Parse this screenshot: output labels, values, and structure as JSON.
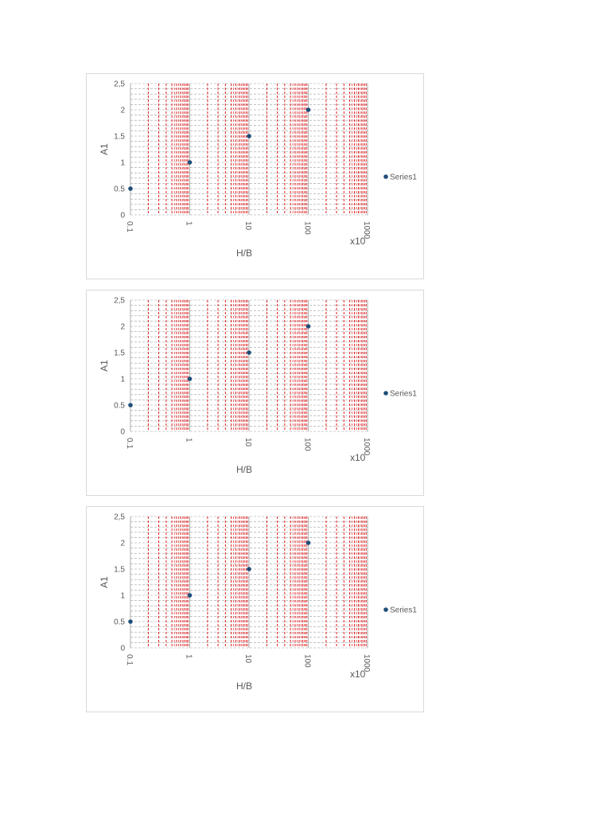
{
  "colors": {
    "minor_x_grid": "#e02020",
    "major_x_grid": "#999999",
    "y_grid": "#9e9e9e",
    "marker": "#1f4e79",
    "text": "#595959",
    "frame": "#d9d9d9"
  },
  "chart_data": [
    {
      "type": "scatter",
      "x_scale": "log",
      "xlim": [
        0.1,
        1000
      ],
      "ylim": [
        0,
        2.5
      ],
      "x_ticks": [
        "0.1",
        "1",
        "10",
        "100",
        "1000"
      ],
      "x_tick_values": [
        0.1,
        1,
        10,
        100,
        1000
      ],
      "y_ticks": [
        "0",
        "0.5",
        "1",
        "1.5",
        "2",
        "2,5"
      ],
      "y_tick_values": [
        0,
        0.5,
        1,
        1.5,
        2,
        2.5
      ],
      "xlabel": "H/B",
      "ylabel": "A1",
      "x_multiplier_label": "x10",
      "grid": true,
      "legend_position": "right",
      "series": [
        {
          "name": "Series1",
          "x": [
            0.1,
            1,
            10,
            100
          ],
          "y": [
            0.5,
            1,
            1.5,
            2
          ]
        }
      ]
    },
    {
      "type": "scatter",
      "x_scale": "log",
      "xlim": [
        0.1,
        1000
      ],
      "ylim": [
        0,
        2.5
      ],
      "x_ticks": [
        "0.1",
        "1",
        "10",
        "100",
        "1000"
      ],
      "x_tick_values": [
        0.1,
        1,
        10,
        100,
        1000
      ],
      "y_ticks": [
        "0",
        "0.5",
        "1",
        "1.5",
        "2",
        "2,5"
      ],
      "y_tick_values": [
        0,
        0.5,
        1,
        1.5,
        2,
        2.5
      ],
      "xlabel": "H/B",
      "ylabel": "A1",
      "x_multiplier_label": "x10",
      "grid": true,
      "legend_position": "right",
      "series": [
        {
          "name": "Series1",
          "x": [
            0.1,
            1,
            10,
            100
          ],
          "y": [
            0.5,
            1,
            1.5,
            2
          ]
        }
      ]
    },
    {
      "type": "scatter",
      "x_scale": "log",
      "xlim": [
        0.1,
        1000
      ],
      "ylim": [
        0,
        2.5
      ],
      "x_ticks": [
        "0.1",
        "1",
        "10",
        "100",
        "1000"
      ],
      "x_tick_values": [
        0.1,
        1,
        10,
        100,
        1000
      ],
      "y_ticks": [
        "0",
        "0.5",
        "1",
        "1.5",
        "2",
        "2,5"
      ],
      "y_tick_values": [
        0,
        0.5,
        1,
        1.5,
        2,
        2.5
      ],
      "xlabel": "H/B",
      "ylabel": "A1",
      "x_multiplier_label": "x10",
      "grid": true,
      "legend_position": "right",
      "series": [
        {
          "name": "Series1",
          "x": [
            0.1,
            1,
            10,
            100
          ],
          "y": [
            0.5,
            1,
            1.5,
            2
          ]
        }
      ]
    }
  ]
}
